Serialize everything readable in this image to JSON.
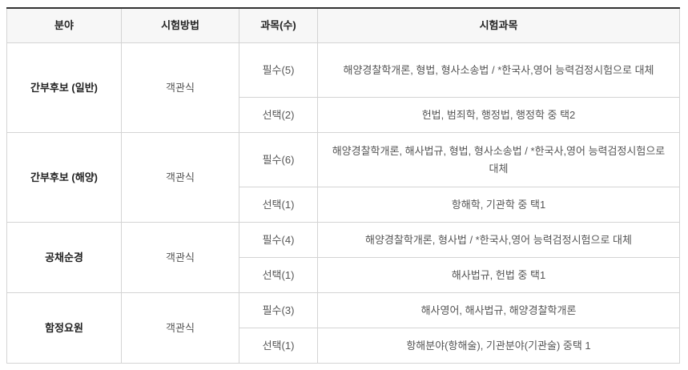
{
  "headers": [
    "분야",
    "시험방법",
    "과목(수)",
    "시험과목"
  ],
  "groups": [
    {
      "field": "간부후보 (일반)",
      "method": "객관식",
      "rows": [
        {
          "subject_count": "필수(5)",
          "subjects": "해양경찰학개론, 형법, 형사소송법 / *한국사,영어 능력검정시험으로 대체"
        },
        {
          "subject_count": "선택(2)",
          "subjects": "헌법, 범죄학, 행정법, 행정학 중 택2"
        }
      ]
    },
    {
      "field": "간부후보 (해양)",
      "method": "객관식",
      "rows": [
        {
          "subject_count": "필수(6)",
          "subjects": "해양경찰학개론, 해사법규, 형법, 형사소송법 / *한국사,영어 능력검정시험으로 대체"
        },
        {
          "subject_count": "선택(1)",
          "subjects": "항해학, 기관학 중 택1"
        }
      ]
    },
    {
      "field": "공채순경",
      "method": "객관식",
      "rows": [
        {
          "subject_count": "필수(4)",
          "subjects": "해양경찰학개론, 형사법 / *한국사,영어 능력검정시험으로 대체"
        },
        {
          "subject_count": "선택(1)",
          "subjects": "해사법규, 헌법 중 택1"
        }
      ]
    },
    {
      "field": "함정요원",
      "method": "객관식",
      "rows": [
        {
          "subject_count": "필수(3)",
          "subjects": "해사영어, 해사법규, 해양경찰학개론"
        },
        {
          "subject_count": "선택(1)",
          "subjects": "항해분야(항해술), 기관분야(기관술) 중택 1"
        }
      ]
    }
  ]
}
